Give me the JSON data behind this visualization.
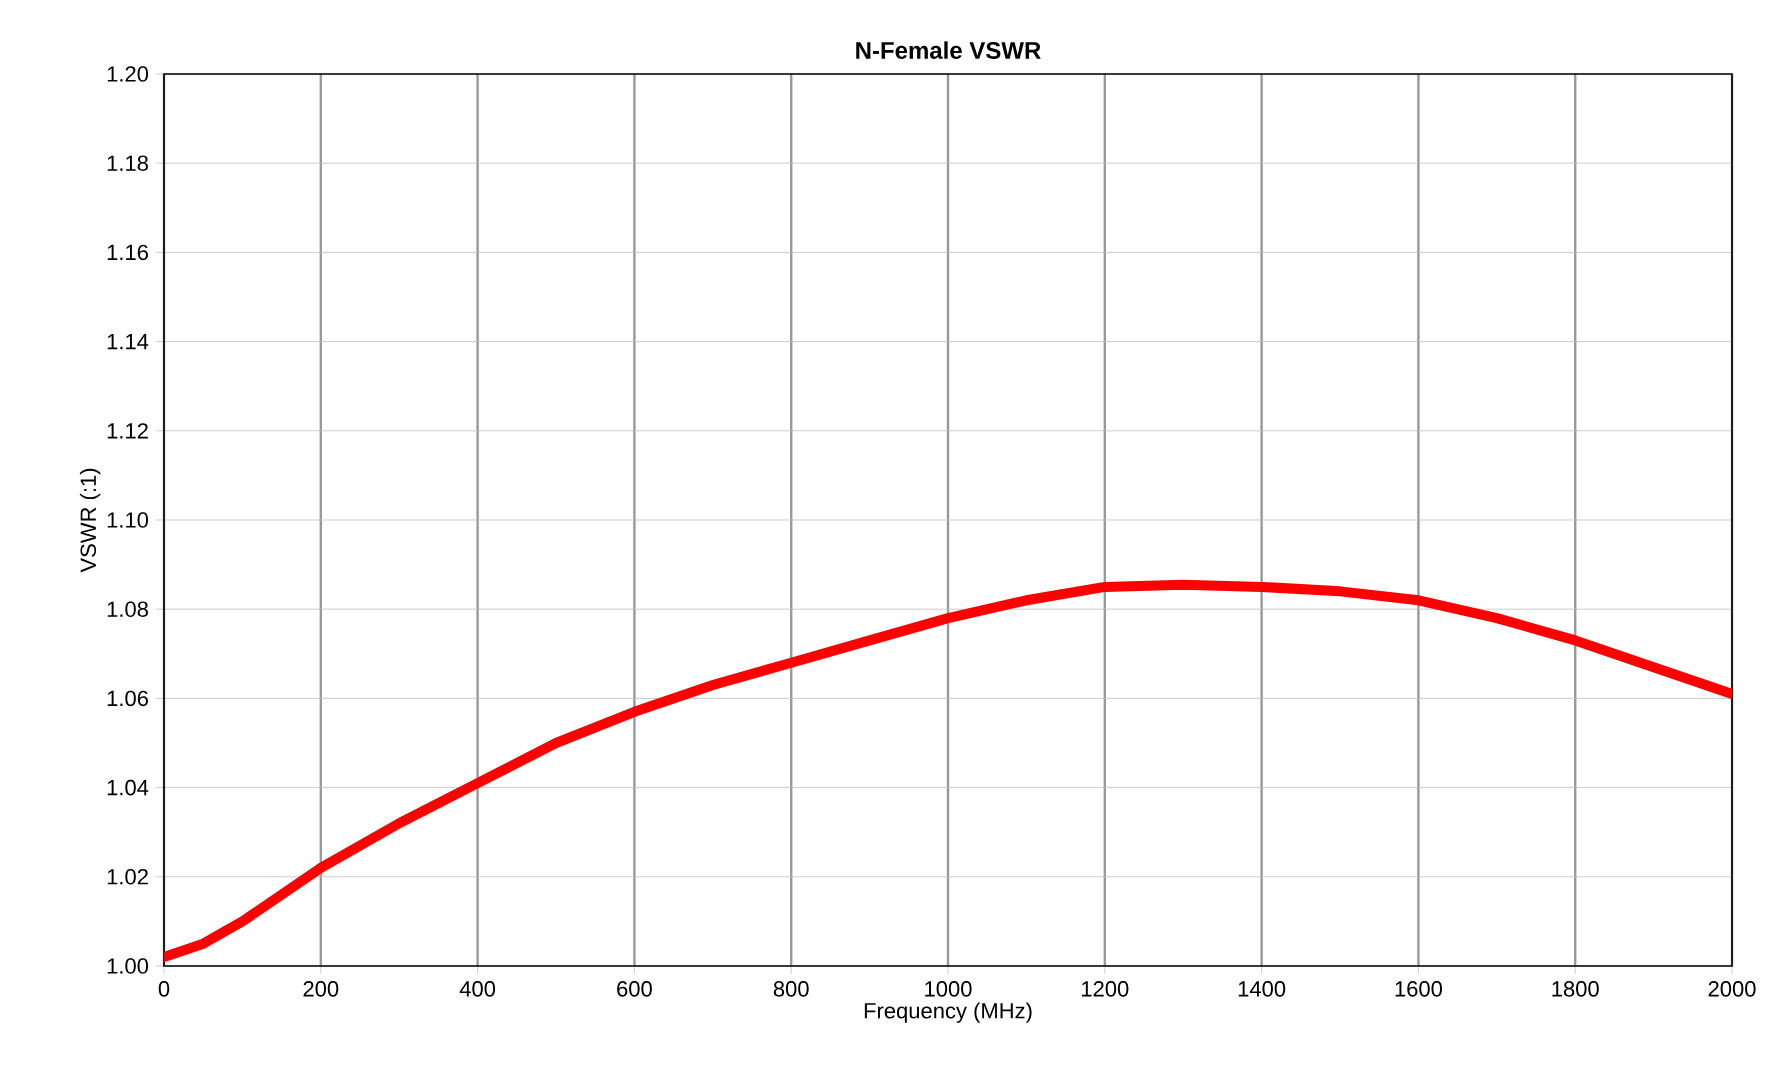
{
  "chart_data": {
    "type": "line",
    "title": "N-Female VSWR",
    "xlabel": "Frequency (MHz)",
    "ylabel": "VSWR (:1)",
    "x": [
      0,
      50,
      100,
      200,
      300,
      400,
      500,
      600,
      700,
      800,
      900,
      1000,
      1100,
      1200,
      1300,
      1400,
      1500,
      1600,
      1700,
      1800,
      1900,
      2000
    ],
    "series": [
      {
        "color": "#ff0000",
        "values": [
          1.002,
          1.005,
          1.01,
          1.022,
          1.032,
          1.041,
          1.05,
          1.057,
          1.063,
          1.068,
          1.073,
          1.078,
          1.082,
          1.085,
          1.0855,
          1.085,
          1.084,
          1.082,
          1.078,
          1.073,
          1.067,
          1.061
        ]
      }
    ],
    "xlim": [
      0,
      2000
    ],
    "xticks": [
      0,
      200,
      400,
      600,
      800,
      1000,
      1200,
      1400,
      1600,
      1800,
      2000
    ],
    "ylim": [
      1.0,
      1.2
    ],
    "yticks": [
      {
        "value": 1.0,
        "label": "1.00"
      },
      {
        "value": 1.02,
        "label": "1.02"
      },
      {
        "value": 1.04,
        "label": "1.04"
      },
      {
        "value": 1.06,
        "label": "1.06"
      },
      {
        "value": 1.08,
        "label": "1.08"
      },
      {
        "value": 1.1,
        "label": "1.10"
      },
      {
        "value": 1.12,
        "label": "1.12"
      },
      {
        "value": 1.14,
        "label": "1.14"
      },
      {
        "value": 1.16,
        "label": "1.16"
      },
      {
        "value": 1.18,
        "label": "1.18"
      },
      {
        "value": 1.2,
        "label": "1.20"
      }
    ],
    "grid": true,
    "marker": "none",
    "line_style": "solid"
  }
}
